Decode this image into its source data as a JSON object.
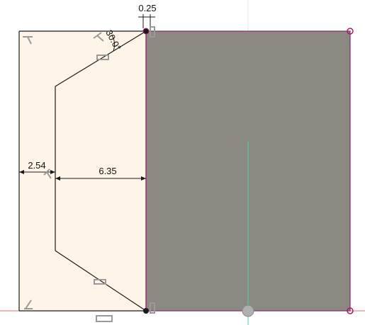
{
  "dimensions": {
    "gap": "0.25",
    "angle": "30.0°",
    "left_offset": "2.54",
    "width": "6.35"
  },
  "colors": {
    "sketch_fill": "#fef5e8",
    "body_fill": "#8b8a82",
    "body_edge": "#8a2a6a",
    "line": "#1a1a1a",
    "axis_green": "#4fd0a8",
    "axis_red": "#e07070",
    "constraint_icon": "#9a9a9a",
    "point_marker": "#a0206a"
  }
}
